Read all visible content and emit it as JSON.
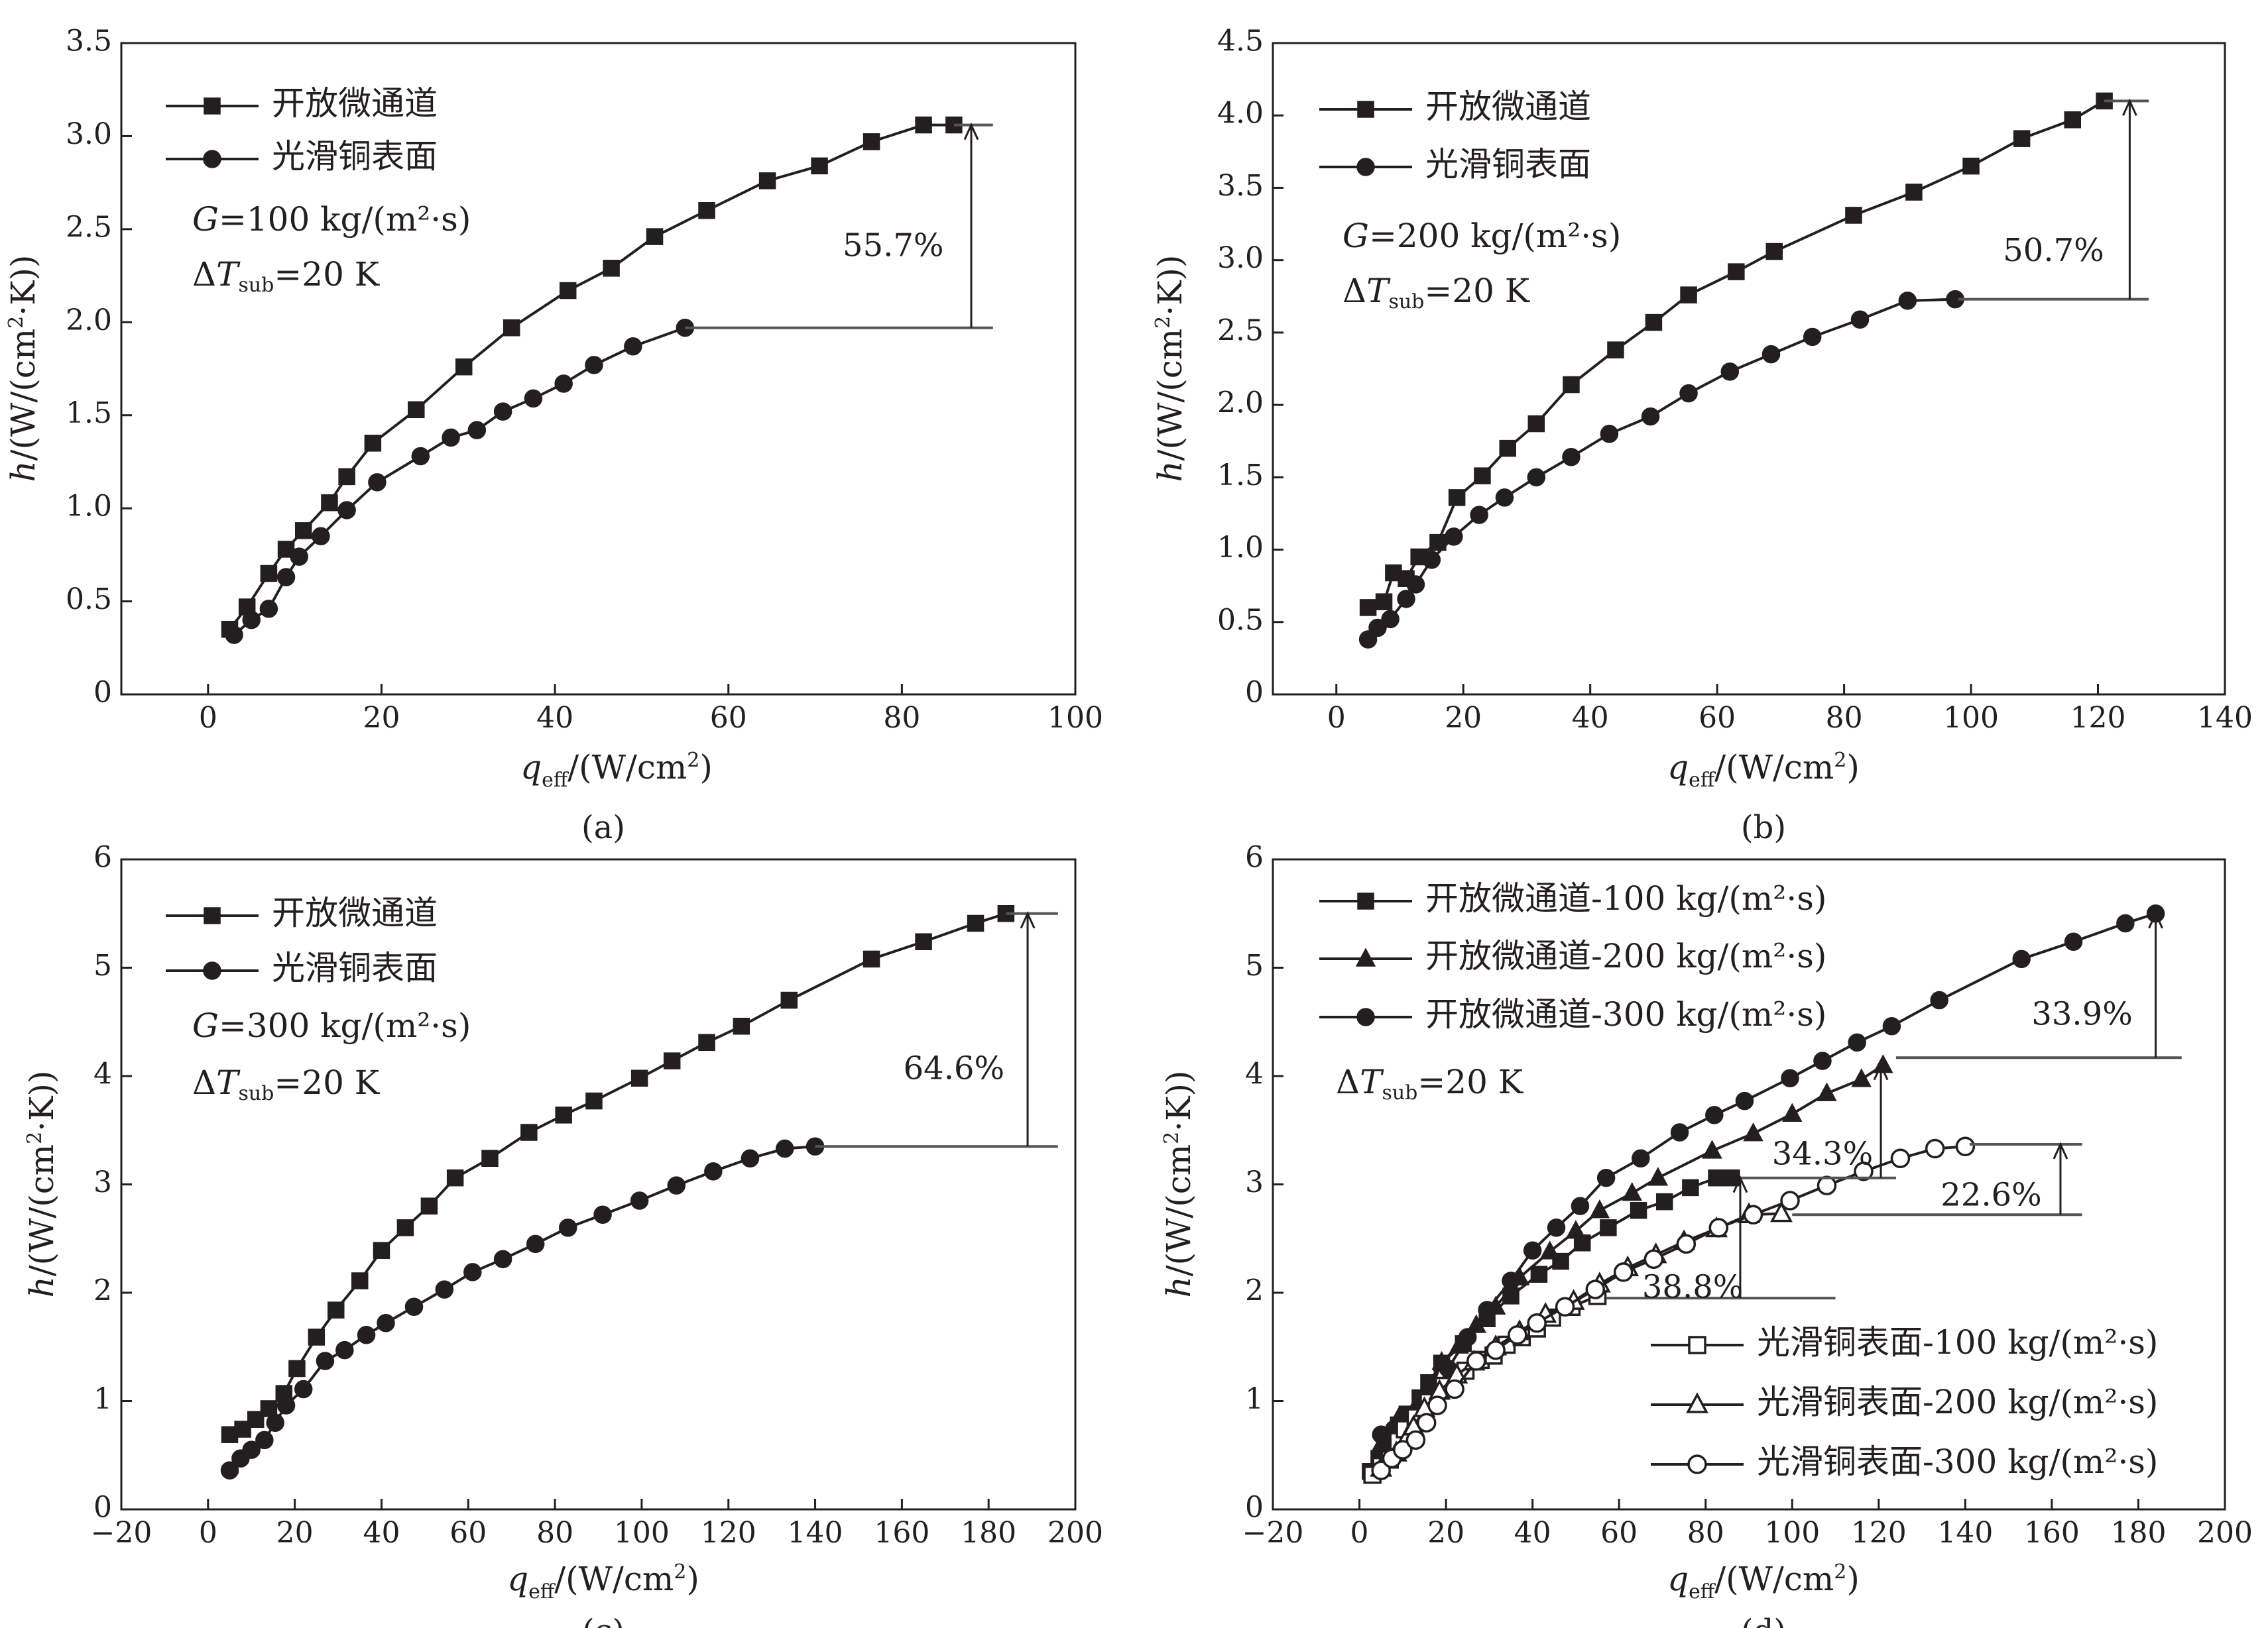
{
  "colors": {
    "ink": "#231f20",
    "annotation_line": "#555555",
    "background": "#ffffff"
  },
  "chart_data": [
    {
      "id": "a",
      "type": "line",
      "panel_label": "(a)",
      "xlabel": "q_eff/(W/cm²)",
      "ylabel": "h/(W/(cm²·K))",
      "xlim": [
        -10,
        100
      ],
      "ylim": [
        0,
        3.5
      ],
      "xticks": [
        0,
        20,
        40,
        60,
        80,
        100
      ],
      "xtick_labels": [
        "0",
        "20",
        "40",
        "60",
        "80",
        "100"
      ],
      "yticks": [
        0,
        0.5,
        1.0,
        1.5,
        2.0,
        2.5,
        3.0,
        3.5
      ],
      "ytick_labels": [
        "0",
        "0.5",
        "1.0",
        "1.5",
        "2.0",
        "2.5",
        "3.0",
        "3.5"
      ],
      "series": [
        {
          "name": "开放微通道",
          "marker": "square",
          "filled": true,
          "x": [
            2.5,
            4.5,
            7,
            9,
            11,
            14,
            16,
            19,
            24,
            29.5,
            35,
            41.5,
            46.5,
            51.5,
            57.5,
            64.5,
            70.5,
            76.5,
            82.5,
            86
          ],
          "y": [
            0.35,
            0.47,
            0.65,
            0.78,
            0.88,
            1.03,
            1.17,
            1.35,
            1.53,
            1.76,
            1.97,
            2.17,
            2.29,
            2.46,
            2.6,
            2.76,
            2.84,
            2.97,
            3.06,
            3.06
          ]
        },
        {
          "name": "光滑铜表面",
          "marker": "circle",
          "filled": true,
          "x": [
            3,
            5,
            7,
            9,
            10.5,
            13,
            16,
            19.5,
            24.5,
            28,
            31,
            34,
            37.5,
            41,
            44.5,
            49,
            55
          ],
          "y": [
            0.32,
            0.4,
            0.46,
            0.63,
            0.74,
            0.85,
            0.99,
            1.14,
            1.28,
            1.38,
            1.42,
            1.52,
            1.59,
            1.67,
            1.77,
            1.87,
            1.97
          ]
        }
      ],
      "conditions": [
        {
          "prefix": "",
          "italic": "G",
          "sub": "",
          "rest": "=100 kg/(m²·s)"
        },
        {
          "prefix": "Δ",
          "italic": "T",
          "sub": "sub",
          "rest": "=20 K"
        }
      ],
      "annotations": [
        {
          "text": "55.7%",
          "x_line": 88,
          "y_from": 1.97,
          "y_to": 3.06,
          "low_line": [
            55,
            90.5
          ],
          "high_line": [
            86,
            90.5
          ],
          "text_x": 79,
          "text_y": 2.4
        }
      ]
    },
    {
      "id": "b",
      "type": "line",
      "panel_label": "(b)",
      "xlabel": "q_eff/(W/cm²)",
      "ylabel": "h/(W/(cm²·K))",
      "xlim": [
        -10,
        140
      ],
      "ylim": [
        0,
        4.5
      ],
      "xticks": [
        0,
        20,
        40,
        60,
        80,
        100,
        120,
        140
      ],
      "xtick_labels": [
        "0",
        "20",
        "40",
        "60",
        "80",
        "100",
        "120",
        "140"
      ],
      "yticks": [
        0,
        0.5,
        1.0,
        1.5,
        2.0,
        2.5,
        3.0,
        3.5,
        4.0,
        4.5
      ],
      "ytick_labels": [
        "0",
        "0.5",
        "1.0",
        "1.5",
        "2.0",
        "2.5",
        "3.0",
        "3.5",
        "4.0",
        "4.5"
      ],
      "series": [
        {
          "name": "开放微通道",
          "marker": "square",
          "filled": true,
          "x": [
            5,
            7.5,
            9,
            11,
            13,
            16,
            19,
            23,
            27,
            31.5,
            37,
            44,
            50,
            55.5,
            63,
            69,
            81.5,
            91,
            100,
            108,
            116,
            121
          ],
          "y": [
            0.6,
            0.64,
            0.84,
            0.8,
            0.95,
            1.05,
            1.36,
            1.51,
            1.7,
            1.87,
            2.14,
            2.38,
            2.57,
            2.76,
            2.92,
            3.06,
            3.31,
            3.47,
            3.65,
            3.84,
            3.97,
            4.1
          ]
        },
        {
          "name": "光滑铜表面",
          "marker": "circle",
          "filled": true,
          "x": [
            5,
            6.5,
            8.5,
            11,
            12.5,
            15,
            18.5,
            22.5,
            26.5,
            31.5,
            37,
            43,
            49.5,
            55.5,
            62,
            68.5,
            75,
            82.5,
            90,
            97.5
          ],
          "y": [
            0.38,
            0.46,
            0.52,
            0.66,
            0.76,
            0.93,
            1.09,
            1.24,
            1.36,
            1.5,
            1.64,
            1.8,
            1.92,
            2.08,
            2.23,
            2.35,
            2.47,
            2.59,
            2.72,
            2.73
          ]
        }
      ],
      "conditions": [
        {
          "prefix": "",
          "italic": "G",
          "sub": "",
          "rest": "=200 kg/(m²·s)"
        },
        {
          "prefix": "Δ",
          "italic": "T",
          "sub": "sub",
          "rest": "=20 K"
        }
      ],
      "annotations": [
        {
          "text": "50.7%",
          "x_line": 125,
          "y_from": 2.73,
          "y_to": 4.1,
          "low_line": [
            98,
            128
          ],
          "high_line": [
            121,
            128
          ],
          "text_x": 113,
          "text_y": 3.05
        }
      ]
    },
    {
      "id": "c",
      "type": "line",
      "panel_label": "(c)",
      "xlabel": "q_eff/(W/cm²)",
      "ylabel": "h/(W/(cm²·K))",
      "xlim": [
        -20,
        200
      ],
      "ylim": [
        0,
        6
      ],
      "xticks": [
        -20,
        0,
        20,
        40,
        60,
        80,
        100,
        120,
        140,
        160,
        180,
        200
      ],
      "xtick_labels": [
        "−20",
        "0",
        "20",
        "40",
        "60",
        "80",
        "100",
        "120",
        "140",
        "160",
        "180",
        "200"
      ],
      "yticks": [
        0,
        1,
        2,
        3,
        4,
        5,
        6
      ],
      "ytick_labels": [
        "0",
        "1",
        "2",
        "3",
        "4",
        "5",
        "6"
      ],
      "series": [
        {
          "name": "开放微通道",
          "marker": "square",
          "filled": true,
          "x": [
            5,
            8,
            11,
            14,
            17.5,
            20.5,
            25,
            29.5,
            35,
            40,
            45.5,
            51,
            57,
            65,
            74,
            82,
            89,
            99.5,
            107,
            115,
            123,
            134,
            153,
            165,
            177,
            184
          ],
          "y": [
            0.69,
            0.74,
            0.83,
            0.93,
            1.07,
            1.3,
            1.59,
            1.84,
            2.11,
            2.39,
            2.6,
            2.8,
            3.06,
            3.24,
            3.48,
            3.64,
            3.77,
            3.98,
            4.14,
            4.31,
            4.46,
            4.7,
            5.08,
            5.24,
            5.41,
            5.5
          ]
        },
        {
          "name": "光滑铜表面",
          "marker": "circle",
          "filled": true,
          "x": [
            5,
            7.5,
            10,
            13,
            15.5,
            18,
            22,
            27,
            31.5,
            36.5,
            41,
            47.5,
            54.5,
            61,
            68,
            75.5,
            83,
            91,
            99.5,
            108,
            116.5,
            125,
            133,
            140
          ],
          "y": [
            0.36,
            0.47,
            0.55,
            0.64,
            0.8,
            0.96,
            1.11,
            1.37,
            1.47,
            1.61,
            1.72,
            1.87,
            2.03,
            2.19,
            2.31,
            2.45,
            2.6,
            2.72,
            2.85,
            2.99,
            3.12,
            3.24,
            3.33,
            3.35
          ]
        }
      ],
      "conditions": [
        {
          "prefix": "",
          "italic": "G",
          "sub": "",
          "rest": "=300 kg/(m²·s)"
        },
        {
          "prefix": "Δ",
          "italic": "T",
          "sub": "sub",
          "rest": "=20 K"
        }
      ],
      "annotations": [
        {
          "text": "64.6%",
          "x_line": 189,
          "y_from": 3.35,
          "y_to": 5.5,
          "low_line": [
            140,
            196
          ],
          "high_line": [
            184,
            196
          ],
          "text_x": 172,
          "text_y": 4.05
        }
      ]
    },
    {
      "id": "d",
      "type": "line",
      "panel_label": "(d)",
      "xlabel": "q_eff/(W/cm²)",
      "ylabel": "h/(W/(cm²·K))",
      "xlim": [
        -20,
        200
      ],
      "ylim": [
        0,
        6
      ],
      "xticks": [
        -20,
        0,
        20,
        40,
        60,
        80,
        100,
        120,
        140,
        160,
        180,
        200
      ],
      "xtick_labels": [
        "−20",
        "0",
        "20",
        "40",
        "60",
        "80",
        "100",
        "120",
        "140",
        "160",
        "180",
        "200"
      ],
      "yticks": [
        0,
        1,
        2,
        3,
        4,
        5,
        6
      ],
      "ytick_labels": [
        "0",
        "1",
        "2",
        "3",
        "4",
        "5",
        "6"
      ],
      "series": [
        {
          "name": "开放微通道-100 kg/(m²·s)",
          "marker": "square",
          "filled": true,
          "x": [
            2.5,
            4.5,
            7,
            9,
            11,
            14,
            16,
            19,
            24,
            29.5,
            35,
            41.5,
            46.5,
            51.5,
            57.5,
            64.5,
            70.5,
            76.5,
            82.5,
            86
          ],
          "y": [
            0.35,
            0.47,
            0.65,
            0.78,
            0.88,
            1.03,
            1.17,
            1.35,
            1.53,
            1.76,
            1.97,
            2.17,
            2.29,
            2.46,
            2.6,
            2.76,
            2.84,
            2.97,
            3.06,
            3.06
          ]
        },
        {
          "name": "开放微通道-200 kg/(m²·s)",
          "marker": "triangle",
          "filled": true,
          "x": [
            5,
            7.5,
            9,
            11,
            13,
            16,
            19,
            23,
            27,
            31.5,
            37,
            44,
            50,
            55.5,
            63,
            69,
            81.5,
            91,
            100,
            108,
            116,
            121
          ],
          "y": [
            0.6,
            0.64,
            0.84,
            0.8,
            0.95,
            1.05,
            1.36,
            1.51,
            1.7,
            1.87,
            2.14,
            2.38,
            2.57,
            2.76,
            2.92,
            3.06,
            3.31,
            3.47,
            3.65,
            3.84,
            3.97,
            4.1
          ]
        },
        {
          "name": "开放微通道-300 kg/(m²·s)",
          "marker": "circle",
          "filled": true,
          "x": [
            5,
            8,
            11,
            14,
            17.5,
            20.5,
            25,
            29.5,
            35,
            40,
            45.5,
            51,
            57,
            65,
            74,
            82,
            89,
            99.5,
            107,
            115,
            123,
            134,
            153,
            165,
            177,
            184
          ],
          "y": [
            0.69,
            0.74,
            0.83,
            0.93,
            1.07,
            1.3,
            1.59,
            1.84,
            2.11,
            2.39,
            2.6,
            2.8,
            3.06,
            3.24,
            3.48,
            3.64,
            3.77,
            3.98,
            4.14,
            4.31,
            4.46,
            4.7,
            5.08,
            5.24,
            5.41,
            5.5
          ]
        },
        {
          "name": "光滑铜表面-100 kg/(m²·s)",
          "marker": "square",
          "filled": false,
          "x": [
            3,
            5,
            7,
            9,
            10.5,
            13,
            16,
            19.5,
            24.5,
            28,
            31,
            34,
            37.5,
            41,
            44.5,
            49,
            55
          ],
          "y": [
            0.32,
            0.4,
            0.46,
            0.63,
            0.74,
            0.85,
            0.99,
            1.14,
            1.28,
            1.38,
            1.42,
            1.52,
            1.59,
            1.67,
            1.77,
            1.87,
            1.97
          ]
        },
        {
          "name": "光滑铜表面-200 kg/(m²·s)",
          "marker": "triangle",
          "filled": false,
          "x": [
            5,
            6.5,
            8.5,
            11,
            12.5,
            15,
            18.5,
            22.5,
            26.5,
            31.5,
            37,
            43,
            49.5,
            55.5,
            62,
            68.5,
            75,
            82.5,
            90,
            97.5
          ],
          "y": [
            0.38,
            0.46,
            0.52,
            0.66,
            0.76,
            0.93,
            1.09,
            1.24,
            1.36,
            1.5,
            1.64,
            1.8,
            1.92,
            2.08,
            2.23,
            2.35,
            2.47,
            2.59,
            2.72,
            2.73
          ]
        },
        {
          "name": "光滑铜表面-300 kg/(m²·s)",
          "marker": "circle",
          "filled": false,
          "x": [
            5,
            7.5,
            10,
            13,
            15.5,
            18,
            22,
            27,
            31.5,
            36.5,
            41,
            47.5,
            54.5,
            61,
            68,
            75.5,
            83,
            91,
            99.5,
            108,
            116.5,
            125,
            133,
            140
          ],
          "y": [
            0.36,
            0.47,
            0.55,
            0.64,
            0.8,
            0.96,
            1.11,
            1.37,
            1.47,
            1.61,
            1.72,
            1.87,
            2.03,
            2.19,
            2.31,
            2.45,
            2.6,
            2.72,
            2.85,
            2.99,
            3.12,
            3.24,
            3.33,
            3.35
          ]
        }
      ],
      "conditions": [
        {
          "prefix": "Δ",
          "italic": "T",
          "sub": "sub",
          "rest": "=20 K"
        }
      ],
      "annotations": [
        {
          "text": "33.9%",
          "x_line": 184,
          "y_from": 4.17,
          "y_to": 5.5,
          "low_line": [
            124,
            190
          ],
          "high_line": null,
          "text_x": 167,
          "text_y": 4.55
        },
        {
          "text": "34.3%",
          "x_line": 120.5,
          "y_from": 3.06,
          "y_to": 4.1,
          "low_line": [
            88,
            124
          ],
          "high_line": null,
          "text_x": 107,
          "text_y": 3.26
        },
        {
          "text": "22.6%",
          "x_line": 162,
          "y_from": 2.72,
          "y_to": 3.37,
          "low_line": [
            100,
            167
          ],
          "high_line": [
            141,
            167
          ],
          "text_x": 146,
          "text_y": 2.88
        },
        {
          "text": "38.8%",
          "x_line": 88,
          "y_from": 1.95,
          "y_to": 3.06,
          "low_line": [
            57,
            110
          ],
          "high_line": null,
          "text_x": 77,
          "text_y": 2.03
        }
      ]
    }
  ]
}
